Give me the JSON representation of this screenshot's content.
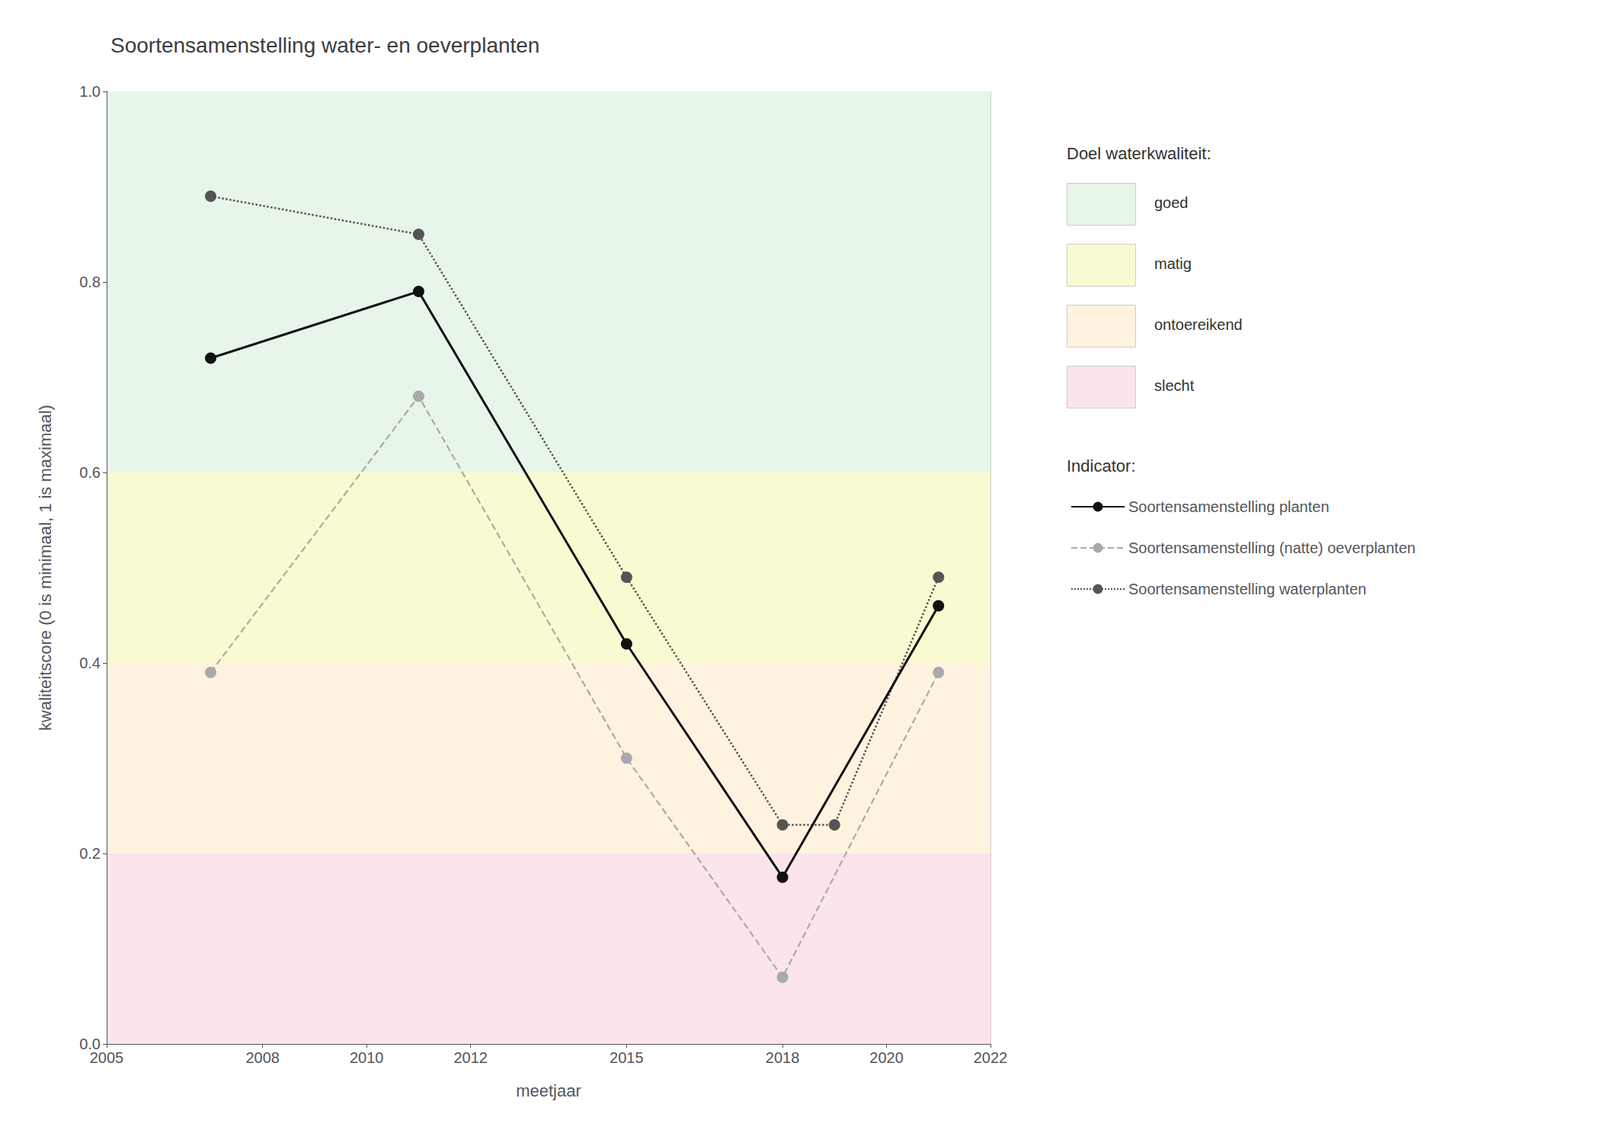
{
  "chart_data": {
    "type": "line",
    "title": "Soortensamenstelling water- en oeverplanten",
    "xlabel": "meetjaar",
    "ylabel": "kwaliteitscore (0 is minimaal, 1 is maximaal)",
    "xlim": [
      2005,
      2022
    ],
    "xticks": [
      2005,
      2008,
      2010,
      2012,
      2015,
      2018,
      2020,
      2022
    ],
    "ylim": [
      0.0,
      1.0
    ],
    "yticks": [
      {
        "value": 0.0,
        "label": "0.0"
      },
      0.2,
      0.4,
      0.6,
      0.8,
      {
        "value": 1.0,
        "label": "1.0"
      }
    ],
    "grid": true,
    "bands": {
      "title": "Doel waterkwaliteit:",
      "items": [
        {
          "name": "goed",
          "color": "#e8f5e9",
          "ymin": 0.6,
          "ymax": 1.0
        },
        {
          "name": "matig",
          "color": "#fafad2",
          "ymin": 0.4,
          "ymax": 0.6
        },
        {
          "name": "ontoereikend",
          "color": "#fff3e0",
          "ymin": 0.2,
          "ymax": 0.4
        },
        {
          "name": "slecht",
          "color": "#fce4ec",
          "ymin": 0.0,
          "ymax": 0.2
        }
      ]
    },
    "legend_title": "Indicator:",
    "series": [
      {
        "name": "Soortensamenstelling planten",
        "color": "#111111",
        "line_style": "solid",
        "marker": "circle",
        "x": [
          2007,
          2011,
          2015,
          2018,
          2021
        ],
        "values": [
          0.72,
          0.79,
          0.42,
          0.175,
          0.46
        ]
      },
      {
        "name": "Soortensamenstelling (natte) oeverplanten",
        "color": "#aaaaaa",
        "line_style": "dashed",
        "marker": "circle",
        "x": [
          2007,
          2011,
          2015,
          2018,
          2021
        ],
        "values": [
          0.39,
          0.68,
          0.3,
          0.07,
          0.39
        ]
      },
      {
        "name": "Soortensamenstelling waterplanten",
        "color": "#555555",
        "line_style": "dotted",
        "marker": "circle",
        "x": [
          2007,
          2011,
          2015,
          2018,
          2019,
          2021
        ],
        "values": [
          0.89,
          0.85,
          0.49,
          0.23,
          0.23,
          0.49
        ]
      }
    ]
  }
}
